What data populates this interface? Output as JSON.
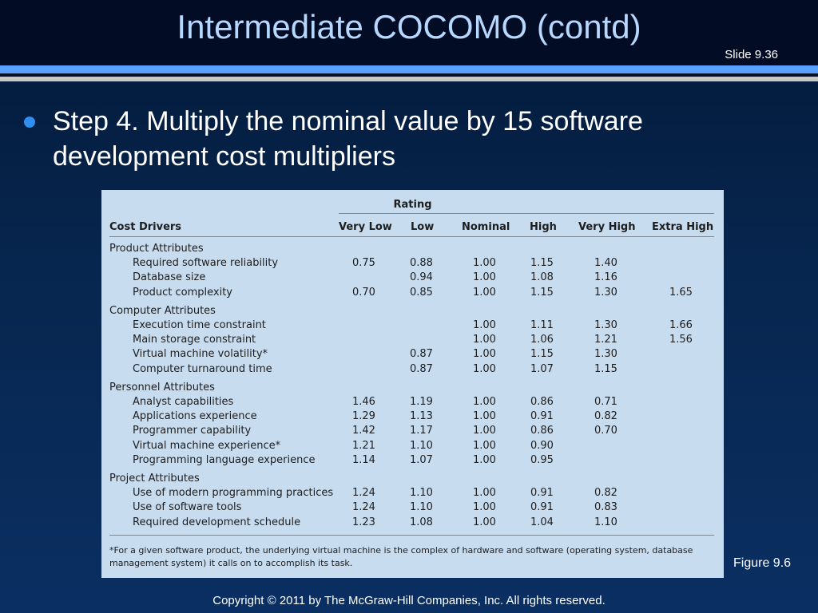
{
  "slide": {
    "title": "Intermediate COCOMO (contd)",
    "number": "Slide 9.36",
    "bullet": "Step 4.  Multiply the nominal value by 15 software development cost multipliers",
    "figure_label": "Figure 9.6",
    "copyright": "Copyright © 2011 by The McGraw-Hill Companies, Inc.  All rights reserved."
  },
  "table": {
    "rating_label": "Rating",
    "headers": [
      "Cost Drivers",
      "Very Low",
      "Low",
      "Nominal",
      "High",
      "Very High",
      "Extra High"
    ],
    "groups": [
      {
        "name": "Product Attributes",
        "rows": [
          {
            "driver": "Required software reliability",
            "values": [
              "0.75",
              "0.88",
              "1.00",
              "1.15",
              "1.40",
              ""
            ]
          },
          {
            "driver": "Database size",
            "values": [
              "",
              "0.94",
              "1.00",
              "1.08",
              "1.16",
              ""
            ]
          },
          {
            "driver": "Product complexity",
            "values": [
              "0.70",
              "0.85",
              "1.00",
              "1.15",
              "1.30",
              "1.65"
            ]
          }
        ]
      },
      {
        "name": "Computer Attributes",
        "rows": [
          {
            "driver": "Execution time constraint",
            "values": [
              "",
              "",
              "1.00",
              "1.11",
              "1.30",
              "1.66"
            ]
          },
          {
            "driver": "Main storage constraint",
            "values": [
              "",
              "",
              "1.00",
              "1.06",
              "1.21",
              "1.56"
            ]
          },
          {
            "driver": "Virtual machine volatility*",
            "values": [
              "",
              "0.87",
              "1.00",
              "1.15",
              "1.30",
              ""
            ]
          },
          {
            "driver": "Computer turnaround time",
            "values": [
              "",
              "0.87",
              "1.00",
              "1.07",
              "1.15",
              ""
            ]
          }
        ]
      },
      {
        "name": "Personnel Attributes",
        "rows": [
          {
            "driver": "Analyst capabilities",
            "values": [
              "1.46",
              "1.19",
              "1.00",
              "0.86",
              "0.71",
              ""
            ]
          },
          {
            "driver": "Applications experience",
            "values": [
              "1.29",
              "1.13",
              "1.00",
              "0.91",
              "0.82",
              ""
            ]
          },
          {
            "driver": "Programmer capability",
            "values": [
              "1.42",
              "1.17",
              "1.00",
              "0.86",
              "0.70",
              ""
            ]
          },
          {
            "driver": "Virtual machine experience*",
            "values": [
              "1.21",
              "1.10",
              "1.00",
              "0.90",
              "",
              ""
            ]
          },
          {
            "driver": "Programming language experience",
            "values": [
              "1.14",
              "1.07",
              "1.00",
              "0.95",
              "",
              ""
            ]
          }
        ]
      },
      {
        "name": "Project Attributes",
        "rows": [
          {
            "driver": "Use of modern programming practices",
            "values": [
              "1.24",
              "1.10",
              "1.00",
              "0.91",
              "0.82",
              ""
            ]
          },
          {
            "driver": "Use of software tools",
            "values": [
              "1.24",
              "1.10",
              "1.00",
              "0.91",
              "0.83",
              ""
            ]
          },
          {
            "driver": "Required development schedule",
            "values": [
              "1.23",
              "1.08",
              "1.00",
              "1.04",
              "1.10",
              ""
            ]
          }
        ]
      }
    ],
    "footnote": "*For a given software product, the underlying virtual machine is the complex of hardware and software (operating system, database management system) it calls on to accomplish its task."
  }
}
